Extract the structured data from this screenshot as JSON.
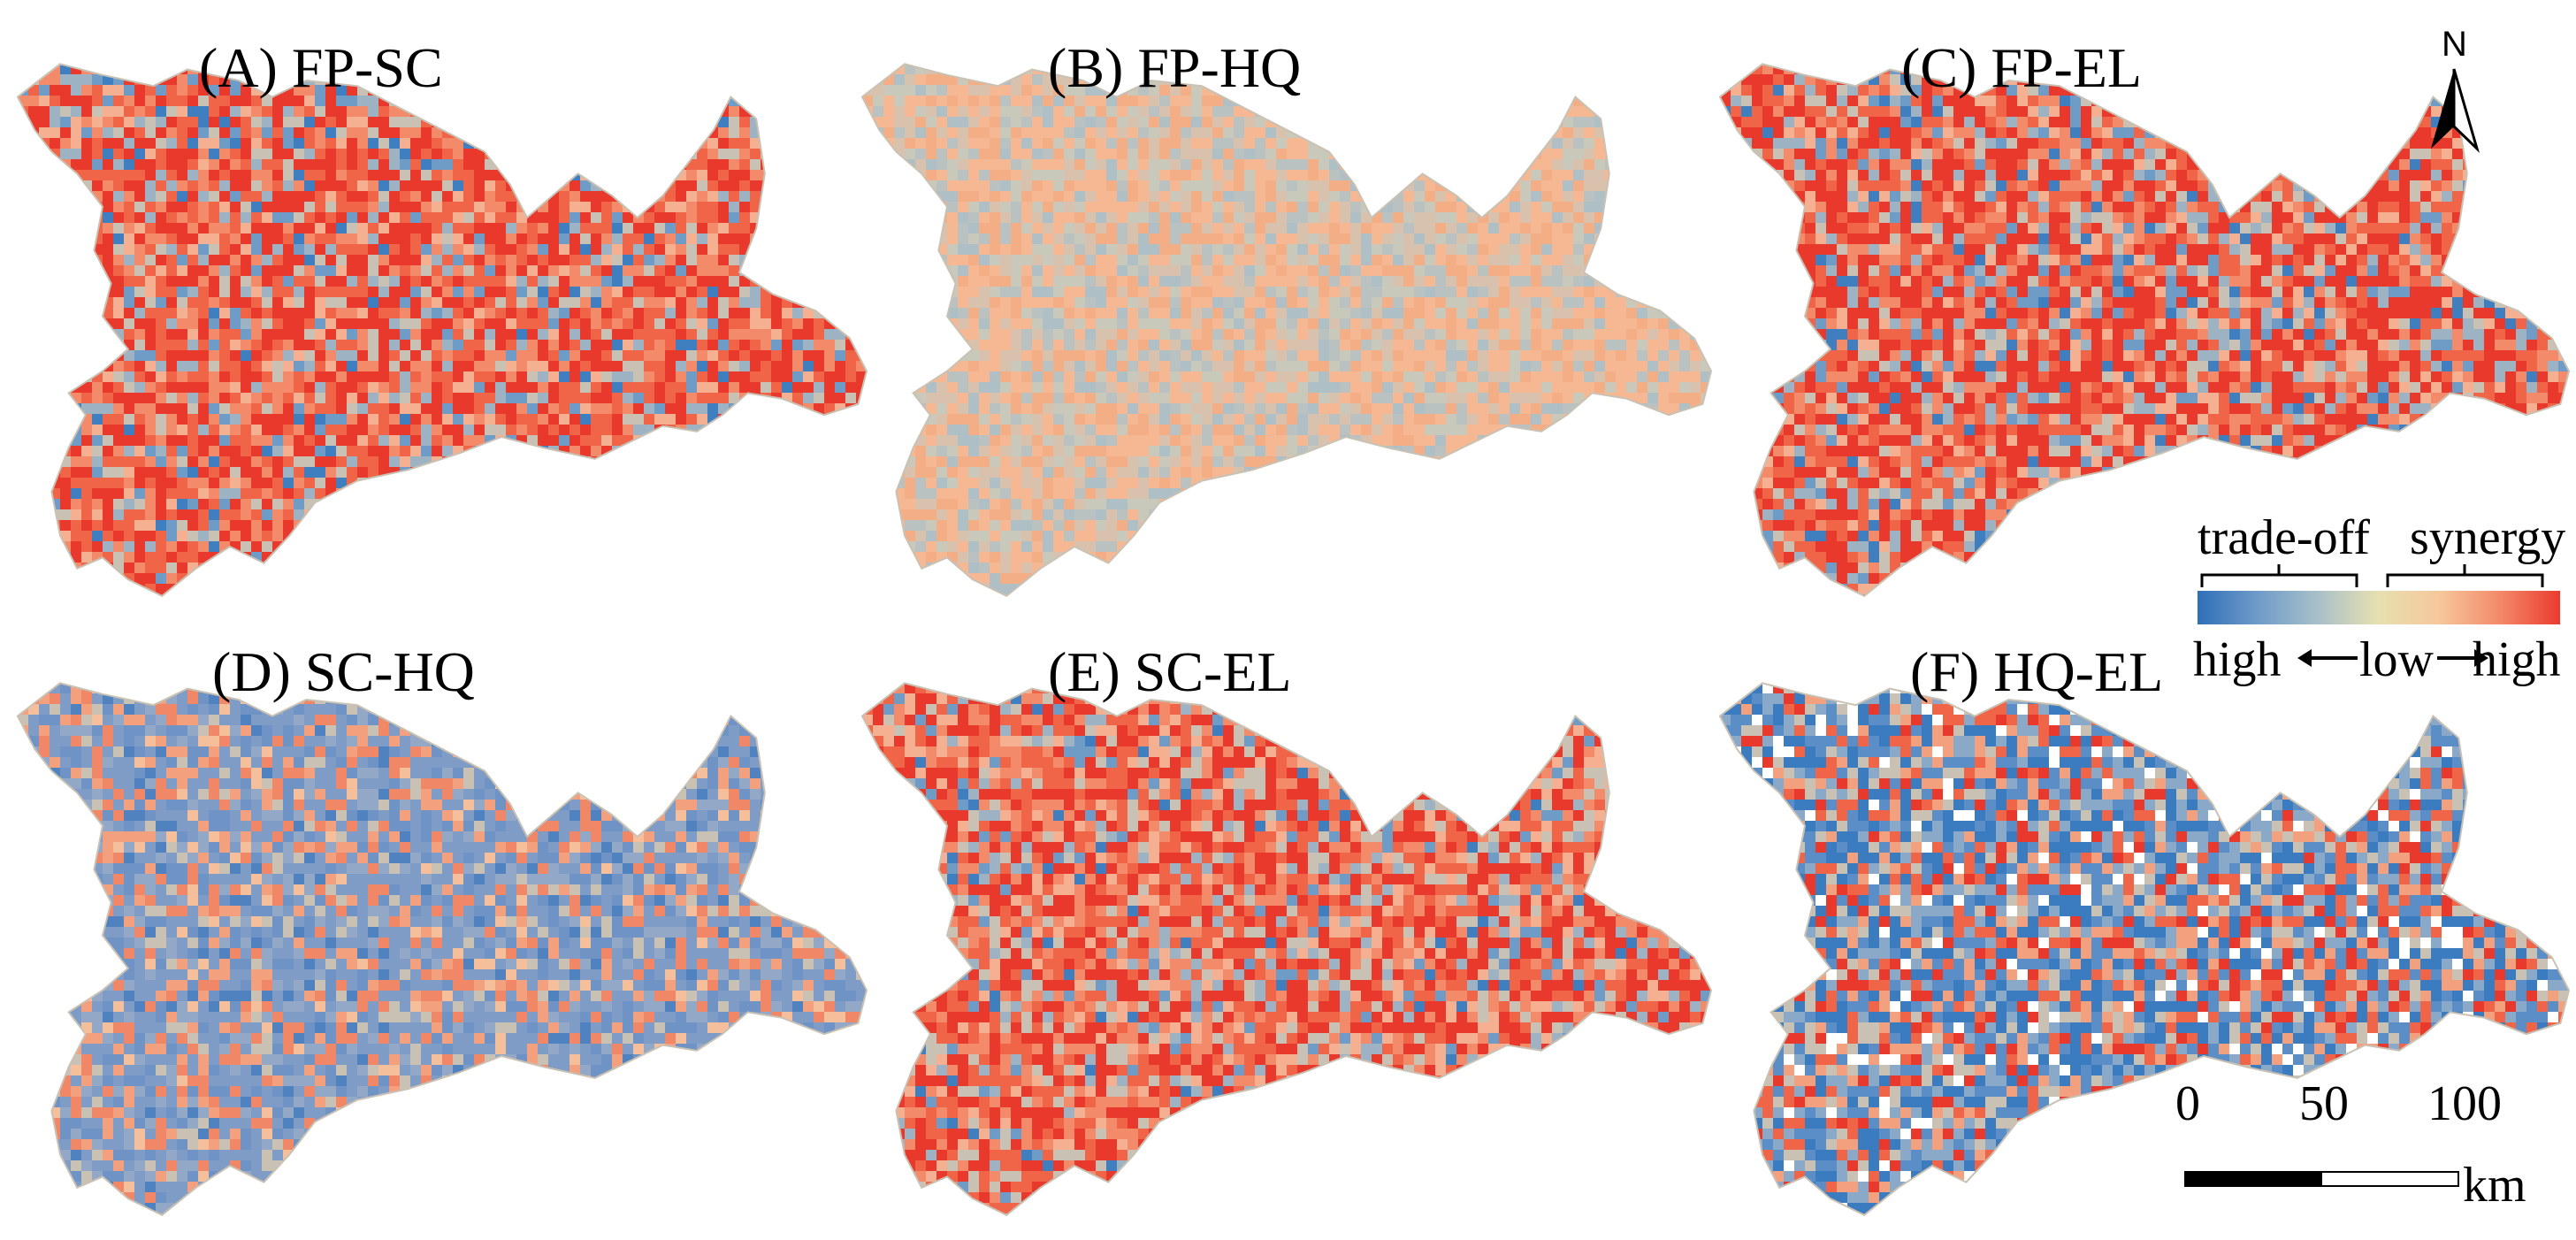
{
  "panels": [
    {
      "id": "A",
      "title": "(A) FP-SC",
      "palette": [
        "#e8392c",
        "#f06447",
        "#f38a6a",
        "#f5b091",
        "#c9c2b4",
        "#9db3c4",
        "#6e9cc7",
        "#3f7fbf"
      ],
      "weights": [
        0.3,
        0.22,
        0.14,
        0.08,
        0.08,
        0.08,
        0.06,
        0.04
      ]
    },
    {
      "id": "B",
      "title": "(B) FP-HQ",
      "palette": [
        "#f6b892",
        "#f3ae86",
        "#d8c2ae",
        "#c8c8bb",
        "#b9c2c0",
        "#aebfc5"
      ],
      "weights": [
        0.3,
        0.18,
        0.16,
        0.14,
        0.12,
        0.1
      ]
    },
    {
      "id": "C",
      "title": "(C) FP-EL",
      "palette": [
        "#e8392c",
        "#f06447",
        "#f38a6a",
        "#f5b091",
        "#c9c2b4",
        "#9db3c4",
        "#6e9cc7",
        "#3f7fbf"
      ],
      "weights": [
        0.34,
        0.2,
        0.12,
        0.08,
        0.08,
        0.07,
        0.06,
        0.05
      ]
    },
    {
      "id": "D",
      "title": "(D) SC-HQ",
      "palette": [
        "#7e9cc6",
        "#6f93c4",
        "#93a8c6",
        "#f08766",
        "#f3a07f",
        "#f6bf9c",
        "#c9c2b4",
        "#4f82be"
      ],
      "weights": [
        0.3,
        0.16,
        0.12,
        0.14,
        0.1,
        0.06,
        0.07,
        0.05
      ]
    },
    {
      "id": "E",
      "title": "(E) SC-EL",
      "palette": [
        "#e8392c",
        "#f06447",
        "#f38a6a",
        "#f5b091",
        "#c9c2b4",
        "#9db3c4",
        "#6e9cc7",
        "#3f7fbf"
      ],
      "weights": [
        0.28,
        0.22,
        0.16,
        0.1,
        0.1,
        0.06,
        0.05,
        0.03
      ]
    },
    {
      "id": "F",
      "title": "(F) HQ-EL",
      "palette": [
        "#3b7bc0",
        "#5b8ec6",
        "#8aa8c8",
        "#c9c2b4",
        "#f3a07f",
        "#f06447",
        "#e8392c",
        "#ffffff"
      ],
      "weights": [
        0.2,
        0.16,
        0.14,
        0.1,
        0.1,
        0.12,
        0.1,
        0.08
      ]
    }
  ],
  "legend": {
    "tradeoff_label": "trade-off",
    "synergy_label": "synergy",
    "high_left_label": "high",
    "low_label": "low",
    "high_right_label": "high",
    "gradient_colors": [
      "#2f6fb8",
      "#6f9bc9",
      "#a9c0c9",
      "#e6e0b0",
      "#f6c79b",
      "#f38a6a",
      "#ea3b2e"
    ]
  },
  "north_arrow": {
    "label": "N"
  },
  "scale_bar": {
    "ticks": [
      "0",
      "50",
      "100"
    ],
    "unit": "km"
  }
}
